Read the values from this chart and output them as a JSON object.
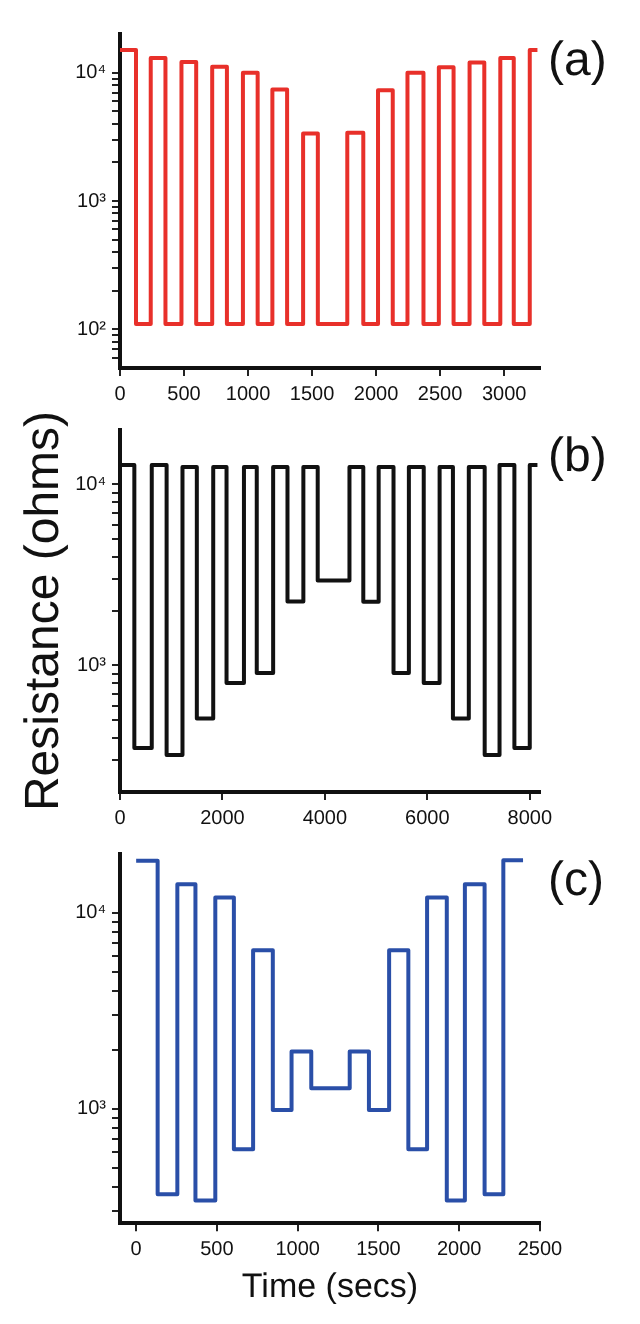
{
  "chart_data": [
    {
      "type": "step",
      "annotations": [
        "(a)"
      ],
      "log": "y",
      "xlim": [
        0,
        3280
      ],
      "ylim": [
        50,
        20000
      ],
      "xticks": [
        0,
        500,
        1000,
        1500,
        2000,
        2500,
        3000
      ],
      "yticks": [
        {
          "value": 60,
          "label": null
        },
        {
          "value": 70,
          "label": null
        },
        {
          "value": 80,
          "label": null
        },
        {
          "value": 90,
          "label": null
        },
        {
          "value": 100,
          "label": "10²"
        },
        {
          "value": 200,
          "label": null
        },
        {
          "value": 300,
          "label": null
        },
        {
          "value": 400,
          "label": null
        },
        {
          "value": 500,
          "label": null
        },
        {
          "value": 600,
          "label": null
        },
        {
          "value": 700,
          "label": null
        },
        {
          "value": 800,
          "label": null
        },
        {
          "value": 900,
          "label": null
        },
        {
          "value": 1000,
          "label": "10³"
        },
        {
          "value": 2000,
          "label": null
        },
        {
          "value": 3000,
          "label": null
        },
        {
          "value": 4000,
          "label": null
        },
        {
          "value": 5000,
          "label": null
        },
        {
          "value": 6000,
          "label": null
        },
        {
          "value": 7000,
          "label": null
        },
        {
          "value": 8000,
          "label": null
        },
        {
          "value": 9000,
          "label": null
        },
        {
          "value": 10000,
          "label": "10⁴"
        }
      ],
      "series": [
        {
          "color": "#e8302a",
          "x": [
            0,
            125,
            240,
            355,
            480,
            595,
            720,
            835,
            960,
            1075,
            1190,
            1305,
            1430,
            1545,
            1775,
            1900,
            2015,
            2130,
            2245,
            2370,
            2490,
            2605,
            2730,
            2845,
            2970,
            3075,
            3200,
            3260
          ],
          "values": [
            15000,
            110,
            13000,
            110,
            12100,
            110,
            11100,
            110,
            10000,
            110,
            7400,
            110,
            3360,
            110,
            3400,
            110,
            7300,
            110,
            10000,
            110,
            11000,
            110,
            12000,
            110,
            13000,
            110,
            15000,
            15000
          ]
        }
      ]
    },
    {
      "type": "step",
      "annotations": [
        "(b)"
      ],
      "ylabel": "Resistance (ohms)",
      "log": "y",
      "xlim": [
        0,
        8200
      ],
      "ylim": [
        200,
        20000
      ],
      "xticks": [
        0,
        2000,
        4000,
        6000,
        8000
      ],
      "yticks": [
        {
          "value": 300,
          "label": null
        },
        {
          "value": 400,
          "label": null
        },
        {
          "value": 500,
          "label": null
        },
        {
          "value": 600,
          "label": null
        },
        {
          "value": 700,
          "label": null
        },
        {
          "value": 800,
          "label": null
        },
        {
          "value": 900,
          "label": null
        },
        {
          "value": 1000,
          "label": "10³"
        },
        {
          "value": 2000,
          "label": null
        },
        {
          "value": 3000,
          "label": null
        },
        {
          "value": 4000,
          "label": null
        },
        {
          "value": 5000,
          "label": null
        },
        {
          "value": 6000,
          "label": null
        },
        {
          "value": 7000,
          "label": null
        },
        {
          "value": 8000,
          "label": null
        },
        {
          "value": 9000,
          "label": null
        },
        {
          "value": 10000,
          "label": "10⁴"
        }
      ],
      "series": [
        {
          "color": "#111111",
          "x": [
            0,
            280,
            620,
            910,
            1220,
            1500,
            1820,
            2080,
            2420,
            2670,
            2990,
            3270,
            3580,
            3860,
            4480,
            4750,
            5050,
            5340,
            5640,
            5930,
            6240,
            6500,
            6810,
            7120,
            7410,
            7700,
            8000,
            8150
          ],
          "values": [
            12800,
            350,
            12800,
            320,
            12500,
            510,
            12500,
            800,
            12500,
            910,
            12500,
            2260,
            12500,
            2950,
            12500,
            2250,
            12500,
            910,
            12500,
            800,
            12500,
            510,
            12500,
            320,
            12800,
            350,
            12800,
            12800
          ]
        }
      ]
    },
    {
      "type": "step",
      "annotations": [
        "(c)"
      ],
      "xlabel": "Time (secs)",
      "log": "y",
      "xlim": [
        -100,
        2500
      ],
      "ylim": [
        260,
        20000
      ],
      "xticks": [
        0,
        500,
        1000,
        1500,
        2000,
        2500
      ],
      "yticks": [
        {
          "value": 300,
          "label": null
        },
        {
          "value": 400,
          "label": null
        },
        {
          "value": 500,
          "label": null
        },
        {
          "value": 600,
          "label": null
        },
        {
          "value": 700,
          "label": null
        },
        {
          "value": 800,
          "label": null
        },
        {
          "value": 900,
          "label": null
        },
        {
          "value": 1000,
          "label": "10³"
        },
        {
          "value": 2000,
          "label": null
        },
        {
          "value": 3000,
          "label": null
        },
        {
          "value": 4000,
          "label": null
        },
        {
          "value": 5000,
          "label": null
        },
        {
          "value": 6000,
          "label": null
        },
        {
          "value": 7000,
          "label": null
        },
        {
          "value": 8000,
          "label": null
        },
        {
          "value": 9000,
          "label": null
        },
        {
          "value": 10000,
          "label": "10⁴"
        }
      ],
      "series": [
        {
          "color": "#2a4fa8",
          "x": [
            0,
            133,
            255,
            367,
            490,
            605,
            724,
            846,
            962,
            1084,
            1322,
            1441,
            1566,
            1685,
            1801,
            1923,
            2035,
            2157,
            2273,
            2395
          ],
          "values": [
            18500,
            365,
            14000,
            340,
            12000,
            620,
            6450,
            985,
            1960,
            1270,
            1960,
            985,
            6450,
            620,
            12000,
            340,
            14000,
            365,
            18600,
            18600
          ]
        }
      ]
    }
  ]
}
